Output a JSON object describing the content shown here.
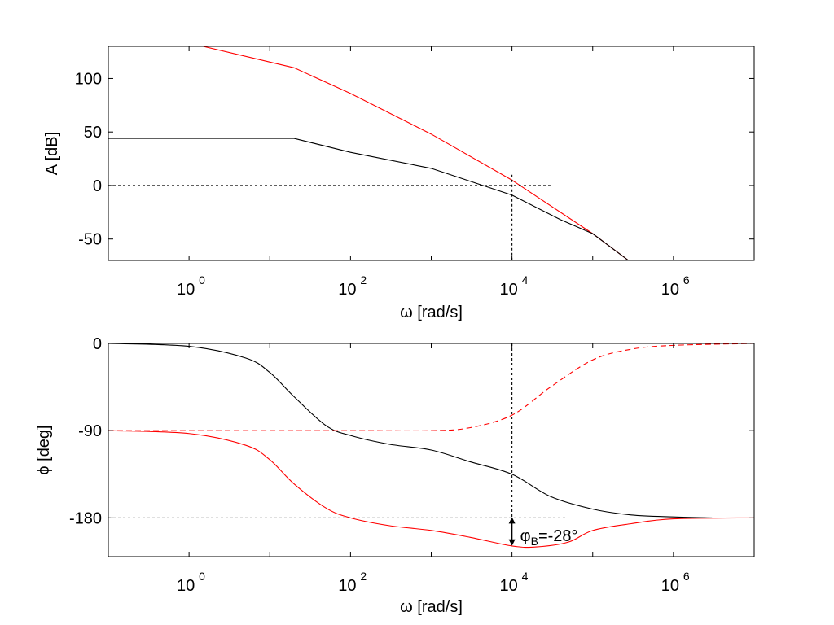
{
  "chart_data": [
    {
      "type": "line",
      "xscale": "log",
      "xlim": [
        0.1,
        10000000
      ],
      "ylim": [
        -70,
        130
      ],
      "xlabel": "ω [rad/s]",
      "ylabel": "A [dB]",
      "x_tick_labels": [
        {
          "value": 1,
          "base": "10",
          "exp": "0"
        },
        {
          "value": 100,
          "base": "10",
          "exp": "2"
        },
        {
          "value": 10000,
          "base": "10",
          "exp": "4"
        },
        {
          "value": 1000000,
          "base": "10",
          "exp": "6"
        }
      ],
      "y_ticks": [
        100,
        50,
        0,
        -50
      ],
      "y_tick_labels": [
        "100",
        "50",
        "0",
        "-50"
      ],
      "grid": false,
      "series": [
        {
          "color": "#ff0000",
          "style": "solid",
          "x": [
            1.5,
            20,
            100,
            1000,
            10000,
            100000,
            300000
          ],
          "y": [
            130,
            110,
            86,
            48,
            5,
            -45,
            -72
          ]
        },
        {
          "color": "#000000",
          "style": "solid",
          "x": [
            0.1,
            20,
            100,
            1000,
            10000,
            40000,
            100000,
            300000
          ],
          "y": [
            44,
            44,
            31,
            16,
            -9,
            -32,
            -45,
            -72
          ]
        },
        {
          "color": "#000000",
          "style": "dashed",
          "x": [
            0.1,
            30000
          ],
          "y": [
            0,
            0
          ]
        },
        {
          "color": "#000000",
          "style": "dashed",
          "x": [
            10000,
            10000
          ],
          "y": [
            10,
            -70
          ]
        }
      ]
    },
    {
      "type": "line",
      "xscale": "log",
      "xlim": [
        0.1,
        10000000
      ],
      "ylim": [
        -220,
        0
      ],
      "xlabel": "ω [rad/s]",
      "ylabel": "ϕ [deg]",
      "x_tick_labels": [
        {
          "value": 1,
          "base": "10",
          "exp": "0"
        },
        {
          "value": 100,
          "base": "10",
          "exp": "2"
        },
        {
          "value": 10000,
          "base": "10",
          "exp": "4"
        },
        {
          "value": 1000000,
          "base": "10",
          "exp": "6"
        }
      ],
      "y_ticks": [
        0,
        -90,
        -180
      ],
      "y_tick_labels": [
        "0",
        "-90",
        "-180"
      ],
      "grid": false,
      "series": [
        {
          "color": "#000000",
          "style": "solid",
          "x": [
            0.1,
            1,
            5,
            10,
            20,
            50,
            100,
            300,
            1000,
            3000,
            10000,
            30000,
            100000,
            300000,
            1000000,
            3000000
          ],
          "y": [
            0,
            -3,
            -15,
            -30,
            -55,
            -85,
            -95,
            -104,
            -110,
            -122,
            -135,
            -158,
            -171,
            -177,
            -179,
            -180
          ]
        },
        {
          "color": "#ff0000",
          "style": "dashed",
          "x": [
            0.1,
            100,
            1000,
            3000,
            10000,
            30000,
            100000,
            300000,
            1000000,
            10000000
          ],
          "y": [
            -90,
            -90,
            -90,
            -87,
            -74,
            -45,
            -17,
            -6,
            -2,
            0
          ]
        },
        {
          "color": "#ff0000",
          "style": "solid",
          "x": [
            0.1,
            1,
            5,
            10,
            20,
            50,
            100,
            300,
            1000,
            3000,
            10000,
            20000,
            50000,
            100000,
            300000,
            1000000,
            10000000
          ],
          "y": [
            -90,
            -93,
            -105,
            -120,
            -145,
            -170,
            -180,
            -188,
            -193,
            -200,
            -209,
            -210,
            -205,
            -193,
            -186,
            -181,
            -180
          ]
        },
        {
          "color": "#000000",
          "style": "dashed",
          "x": [
            0.1,
            50000
          ],
          "y": [
            -180,
            -180
          ]
        },
        {
          "color": "#000000",
          "style": "dashed",
          "x": [
            10000,
            10000
          ],
          "y": [
            0,
            -180
          ]
        }
      ],
      "annotation": {
        "text_base": "φ",
        "text_sub": "B",
        "text_rest": "=-28°",
        "x": 10000,
        "y_from": -180,
        "y_to": -208
      }
    }
  ]
}
